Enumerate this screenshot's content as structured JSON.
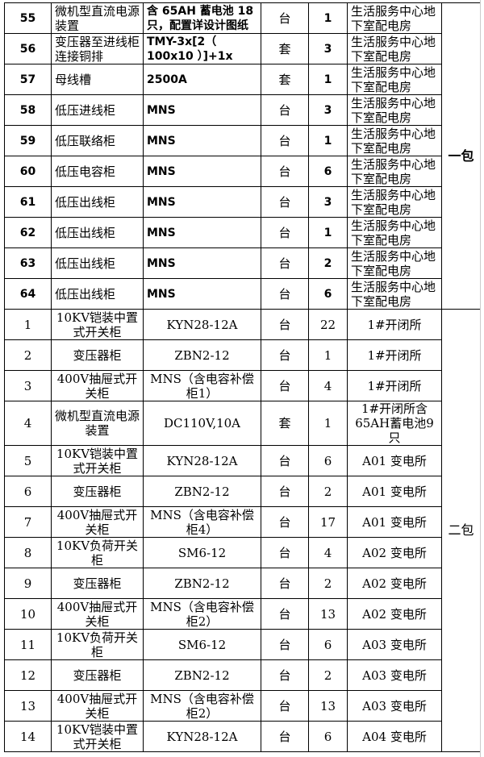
{
  "package1": {
    "label": "一包",
    "rows": [
      {
        "no": "55",
        "name": "微机型直流电源装置",
        "spec": "含 65AH 蓄电池 18只，配置详设计图纸",
        "unit": "台",
        "qty": "1",
        "place": "生活服务中心地下室配电房"
      },
      {
        "no": "56",
        "name": "变压器至进线柜连接铜排",
        "spec": "TMY-3x[2（ 100x10 ）]+1x",
        "unit": "套",
        "qty": "3",
        "place": "生活服务中心地下室配电房"
      },
      {
        "no": "57",
        "name": "母线槽",
        "spec": "2500A",
        "unit": "套",
        "qty": "1",
        "place": "生活服务中心地下室配电房"
      },
      {
        "no": "58",
        "name": "低压进线柜",
        "spec": "MNS",
        "unit": "台",
        "qty": "3",
        "place": "生活服务中心地下室配电房"
      },
      {
        "no": "59",
        "name": "低压联络柜",
        "spec": "MNS",
        "unit": "台",
        "qty": "1",
        "place": "生活服务中心地下室配电房"
      },
      {
        "no": "60",
        "name": "低压电容柜",
        "spec": "MNS",
        "unit": "台",
        "qty": "6",
        "place": "生活服务中心地下室配电房"
      },
      {
        "no": "61",
        "name": "低压出线柜",
        "spec": "MNS",
        "unit": "台",
        "qty": "3",
        "place": "生活服务中心地下室配电房"
      },
      {
        "no": "62",
        "name": "低压出线柜",
        "spec": "MNS",
        "unit": "台",
        "qty": "1",
        "place": "生活服务中心地下室配电房"
      },
      {
        "no": "63",
        "name": "低压出线柜",
        "spec": "MNS",
        "unit": "台",
        "qty": "2",
        "place": "生活服务中心地下室配电房"
      },
      {
        "no": "64",
        "name": "低压出线柜",
        "spec": "MNS",
        "unit": "台",
        "qty": "6",
        "place": "生活服务中心地下室配电房"
      }
    ]
  },
  "package2": {
    "label": "二包",
    "rows": [
      {
        "no": "1",
        "name": "10KV铠装中置式开关柜",
        "spec": "KYN28-12A",
        "unit": "台",
        "qty": "22",
        "place": "1#开闭所"
      },
      {
        "no": "2",
        "name": "变压器柜",
        "spec": "ZBN2-12",
        "unit": "台",
        "qty": "1",
        "place": "1#开闭所"
      },
      {
        "no": "3",
        "name": "400V抽屉式开关柜",
        "spec": "MNS（含电容补偿柜1）",
        "unit": "台",
        "qty": "4",
        "place": "1#开闭所"
      },
      {
        "no": "4",
        "name": "微机型直流电源装置",
        "spec": "DC110V,10A",
        "unit": "套",
        "qty": "1",
        "place": "1#开闭所含65AH蓄电池9只"
      },
      {
        "no": "5",
        "name": "10KV铠装中置式开关柜",
        "spec": "KYN28-12A",
        "unit": "台",
        "qty": "6",
        "place": "A01 变电所"
      },
      {
        "no": "6",
        "name": "变压器柜",
        "spec": "ZBN2-12",
        "unit": "台",
        "qty": "2",
        "place": "A01 变电所"
      },
      {
        "no": "7",
        "name": "400V抽屉式开关柜",
        "spec": "MNS（含电容补偿柜4）",
        "unit": "台",
        "qty": "17",
        "place": "A01 变电所"
      },
      {
        "no": "8",
        "name": "10KV负荷开关柜",
        "spec": "SM6-12",
        "unit": "台",
        "qty": "4",
        "place": "A02 变电所"
      },
      {
        "no": "9",
        "name": "变压器柜",
        "spec": "ZBN2-12",
        "unit": "台",
        "qty": "2",
        "place": "A02 变电所"
      },
      {
        "no": "10",
        "name": "400V抽屉式开关柜",
        "spec": "MNS（含电容补偿柜2）",
        "unit": "台",
        "qty": "13",
        "place": "A02 变电所"
      },
      {
        "no": "11",
        "name": "10KV负荷开关柜",
        "spec": "SM6-12",
        "unit": "台",
        "qty": "6",
        "place": "A03 变电所"
      },
      {
        "no": "12",
        "name": "变压器柜",
        "spec": "ZBN2-12",
        "unit": "台",
        "qty": "2",
        "place": "A03 变电所"
      },
      {
        "no": "13",
        "name": "400V抽屉式开关柜",
        "spec": "MNS（含电容补偿柜2）",
        "unit": "台",
        "qty": "13",
        "place": "A03 变电所"
      },
      {
        "no": "14",
        "name": "10KV铠装中置式开关柜",
        "spec": "KYN28-12A",
        "unit": "台",
        "qty": "6",
        "place": "A04 变电所"
      }
    ]
  }
}
